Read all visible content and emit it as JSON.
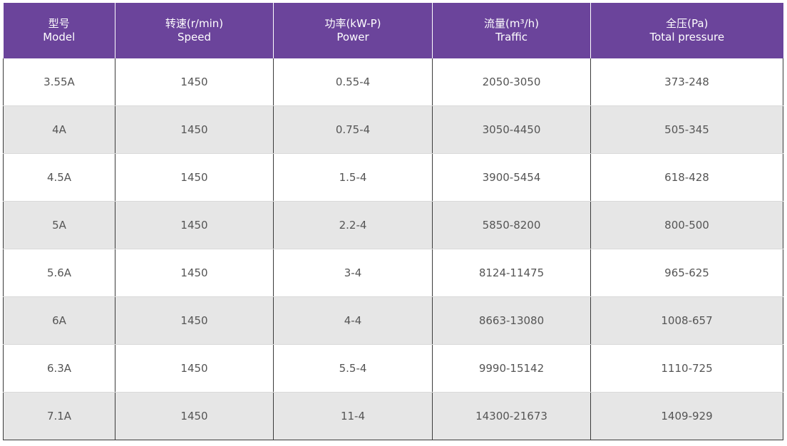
{
  "table": {
    "headers": [
      {
        "cn": "型号",
        "en": "Model"
      },
      {
        "cn": "转速(r/min)",
        "en": "Speed"
      },
      {
        "cn": "功率(kW-P)",
        "en": "Power"
      },
      {
        "cn": "流量(m³/h)",
        "en": "Traffic"
      },
      {
        "cn": "全压(Pa)",
        "en": "Total pressure"
      }
    ],
    "rows": [
      [
        "3.55A",
        "1450",
        "0.55-4",
        "2050-3050",
        "373-248"
      ],
      [
        "4A",
        "1450",
        "0.75-4",
        "3050-4450",
        "505-345"
      ],
      [
        "4.5A",
        "1450",
        "1.5-4",
        "3900-5454",
        "618-428"
      ],
      [
        "5A",
        "1450",
        "2.2-4",
        "5850-8200",
        "800-500"
      ],
      [
        "5.6A",
        "1450",
        "3-4",
        "8124-11475",
        "965-625"
      ],
      [
        "6A",
        "1450",
        "4-4",
        "8663-13080",
        "1008-657"
      ],
      [
        "6.3A",
        "1450",
        "5.5-4",
        "9990-15142",
        "1110-725"
      ],
      [
        "7.1A",
        "1450",
        "11-4",
        "14300-21673",
        "1409-929"
      ]
    ]
  },
  "colors": {
    "header_bg": "#6b449b",
    "header_text": "#ffffff",
    "row_alt_bg": "#e6e6e6",
    "cell_text": "#555555"
  }
}
